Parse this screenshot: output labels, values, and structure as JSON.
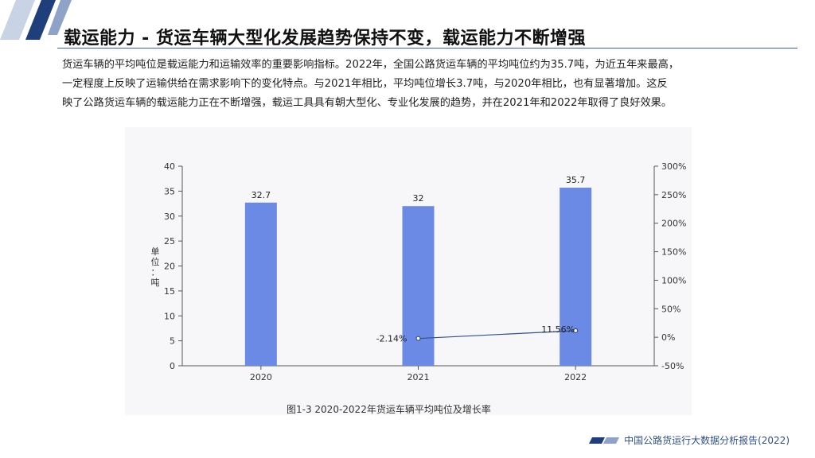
{
  "page": {
    "title": "载运能力 - 货运车辆大型化发展趋势保持不变，载运能力不断增强",
    "intro_lines": [
      "货运车辆的平均吨位是载运能力和运输效率的重要影响指标。2022年，全国公路货运车辆的平均吨位约为35.7吨，为近五年来最高，",
      "一定程度上反映了运输供给在需求影响下的变化特点。与2021年相比，平均吨位增长3.7吨，与2020年相比，也有显著增加。这反",
      "映了公路货运车辆的载运能力正在不断增强，载运工具具有朝大型化、专业化发展的趋势，并在2021年和2022年取得了良好效果。"
    ],
    "caption": "图1-3 2020-2022年货运车辆平均吨位及增长率",
    "footer": "中国公路货运行大数据分析报告(2022)"
  },
  "colors": {
    "bar": "#6b8ae6",
    "line": "#2f4f8f",
    "accent": "#1f3f7a",
    "accent_light": "#8fa3c8"
  },
  "chart_data": {
    "type": "bar",
    "categories": [
      "2020",
      "2021",
      "2022"
    ],
    "series": [
      {
        "type": "bar",
        "axis": "left",
        "values": [
          32.7,
          32,
          35.7
        ],
        "labels": [
          "32.7",
          "32",
          "35.7"
        ]
      },
      {
        "type": "line",
        "axis": "right",
        "values": [
          null,
          -2.14,
          11.56
        ],
        "labels": [
          "",
          "-2.14%",
          "11.56%"
        ]
      }
    ],
    "ylabel": "单位：吨",
    "y_left": {
      "min": 0,
      "max": 40,
      "ticks": [
        "0",
        "5",
        "10",
        "15",
        "20",
        "25",
        "30",
        "35",
        "40"
      ]
    },
    "y_right": {
      "min": -50,
      "max": 300,
      "ticks": [
        "-50%",
        "0%",
        "50%",
        "100%",
        "150%",
        "200%",
        "250%",
        "300%"
      ]
    },
    "grid": false,
    "legend": "none"
  }
}
